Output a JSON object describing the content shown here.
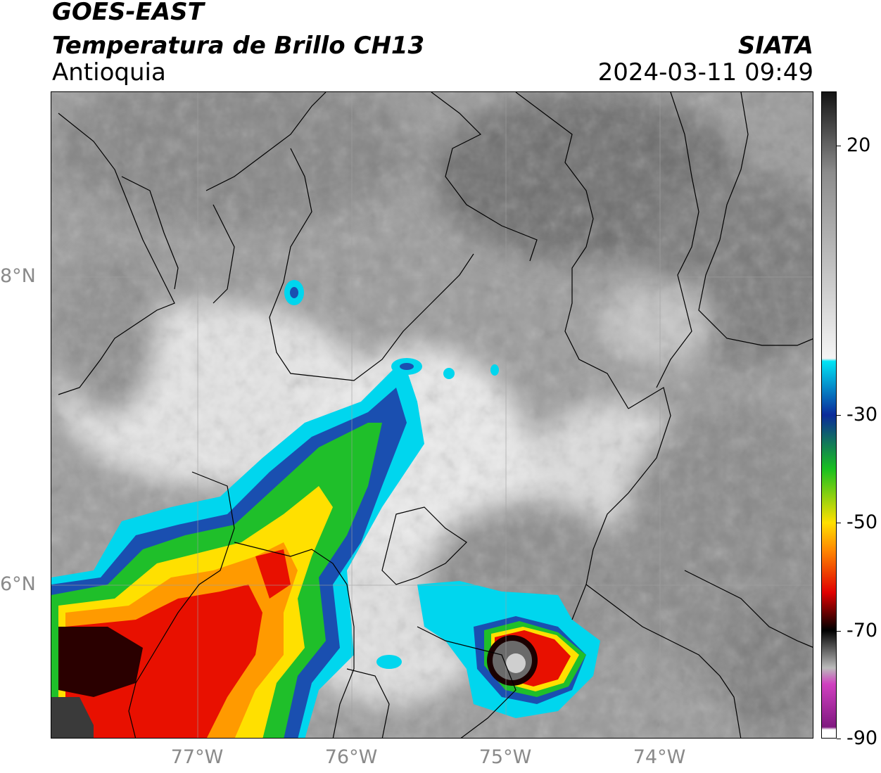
{
  "header": {
    "satellite": "GOES-EAST",
    "product": "Temperatura de Brillo CH13",
    "region": "Antioquia",
    "brand": "SIATA",
    "datetime": "2024-03-11 09:49"
  },
  "map": {
    "lon_range": [
      -77.95,
      -73.0
    ],
    "lat_range": [
      5.0,
      9.2
    ],
    "lon_ticks": [
      {
        "value": -77,
        "label": "77°W"
      },
      {
        "value": -76,
        "label": "76°W"
      },
      {
        "value": -75,
        "label": "75°W"
      },
      {
        "value": -74,
        "label": "74°W"
      }
    ],
    "lat_ticks": [
      {
        "value": 8,
        "label": "8°N"
      },
      {
        "value": 6,
        "label": "6°N"
      }
    ],
    "gridlines": true
  },
  "colorbar": {
    "range": [
      -90,
      30
    ],
    "ticks": [
      {
        "value": 20,
        "label": "20"
      },
      {
        "value": -30,
        "label": "-30"
      },
      {
        "value": -50,
        "label": "-50"
      },
      {
        "value": -70,
        "label": "-70"
      },
      {
        "value": -90,
        "label": "-90"
      }
    ],
    "colors": {
      "warm_dark": "#141414",
      "mid_gray": "#8c8c8c",
      "light": "#f5f5f5",
      "cyan": "#00e5f5",
      "blue": "#0a2a9a",
      "green": "#18c020",
      "yellow": "#ffe000",
      "orange": "#ff8a00",
      "red": "#e00000",
      "black": "#000000",
      "magenta": "#d040c0",
      "purple": "#801880"
    }
  }
}
